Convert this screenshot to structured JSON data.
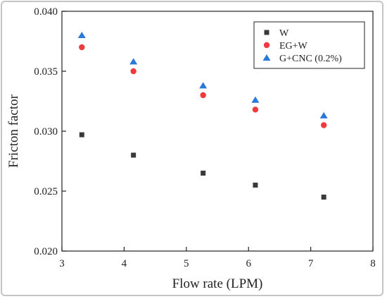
{
  "chart_data": {
    "type": "scatter",
    "xlabel": "Flow rate (LPM)",
    "ylabel": "Fricton factor",
    "xlim": [
      3,
      8
    ],
    "ylim": [
      0.02,
      0.04
    ],
    "xticks": [
      "3",
      "4",
      "5",
      "6",
      "7",
      "8"
    ],
    "yticks": [
      "0.020",
      "0.025",
      "0.030",
      "0.035",
      "0.040"
    ],
    "legend_position": "top-right",
    "grid": false,
    "series": [
      {
        "name": "W",
        "marker": "square",
        "color": "#3a3a3a",
        "x": [
          3.32,
          4.15,
          5.27,
          6.11,
          7.21
        ],
        "y": [
          0.0297,
          0.028,
          0.0265,
          0.0255,
          0.0245
        ]
      },
      {
        "name": "EG+W",
        "marker": "circle",
        "color": "#ef3b3b",
        "x": [
          3.32,
          4.15,
          5.27,
          6.11,
          7.21
        ],
        "y": [
          0.037,
          0.035,
          0.033,
          0.0318,
          0.0305
        ]
      },
      {
        "name": "G+CNC (0.2%)",
        "marker": "triangle",
        "color": "#2a78d8",
        "x": [
          3.32,
          4.15,
          5.27,
          6.11,
          7.21
        ],
        "y": [
          0.038,
          0.0358,
          0.0338,
          0.0326,
          0.0313
        ]
      }
    ]
  }
}
